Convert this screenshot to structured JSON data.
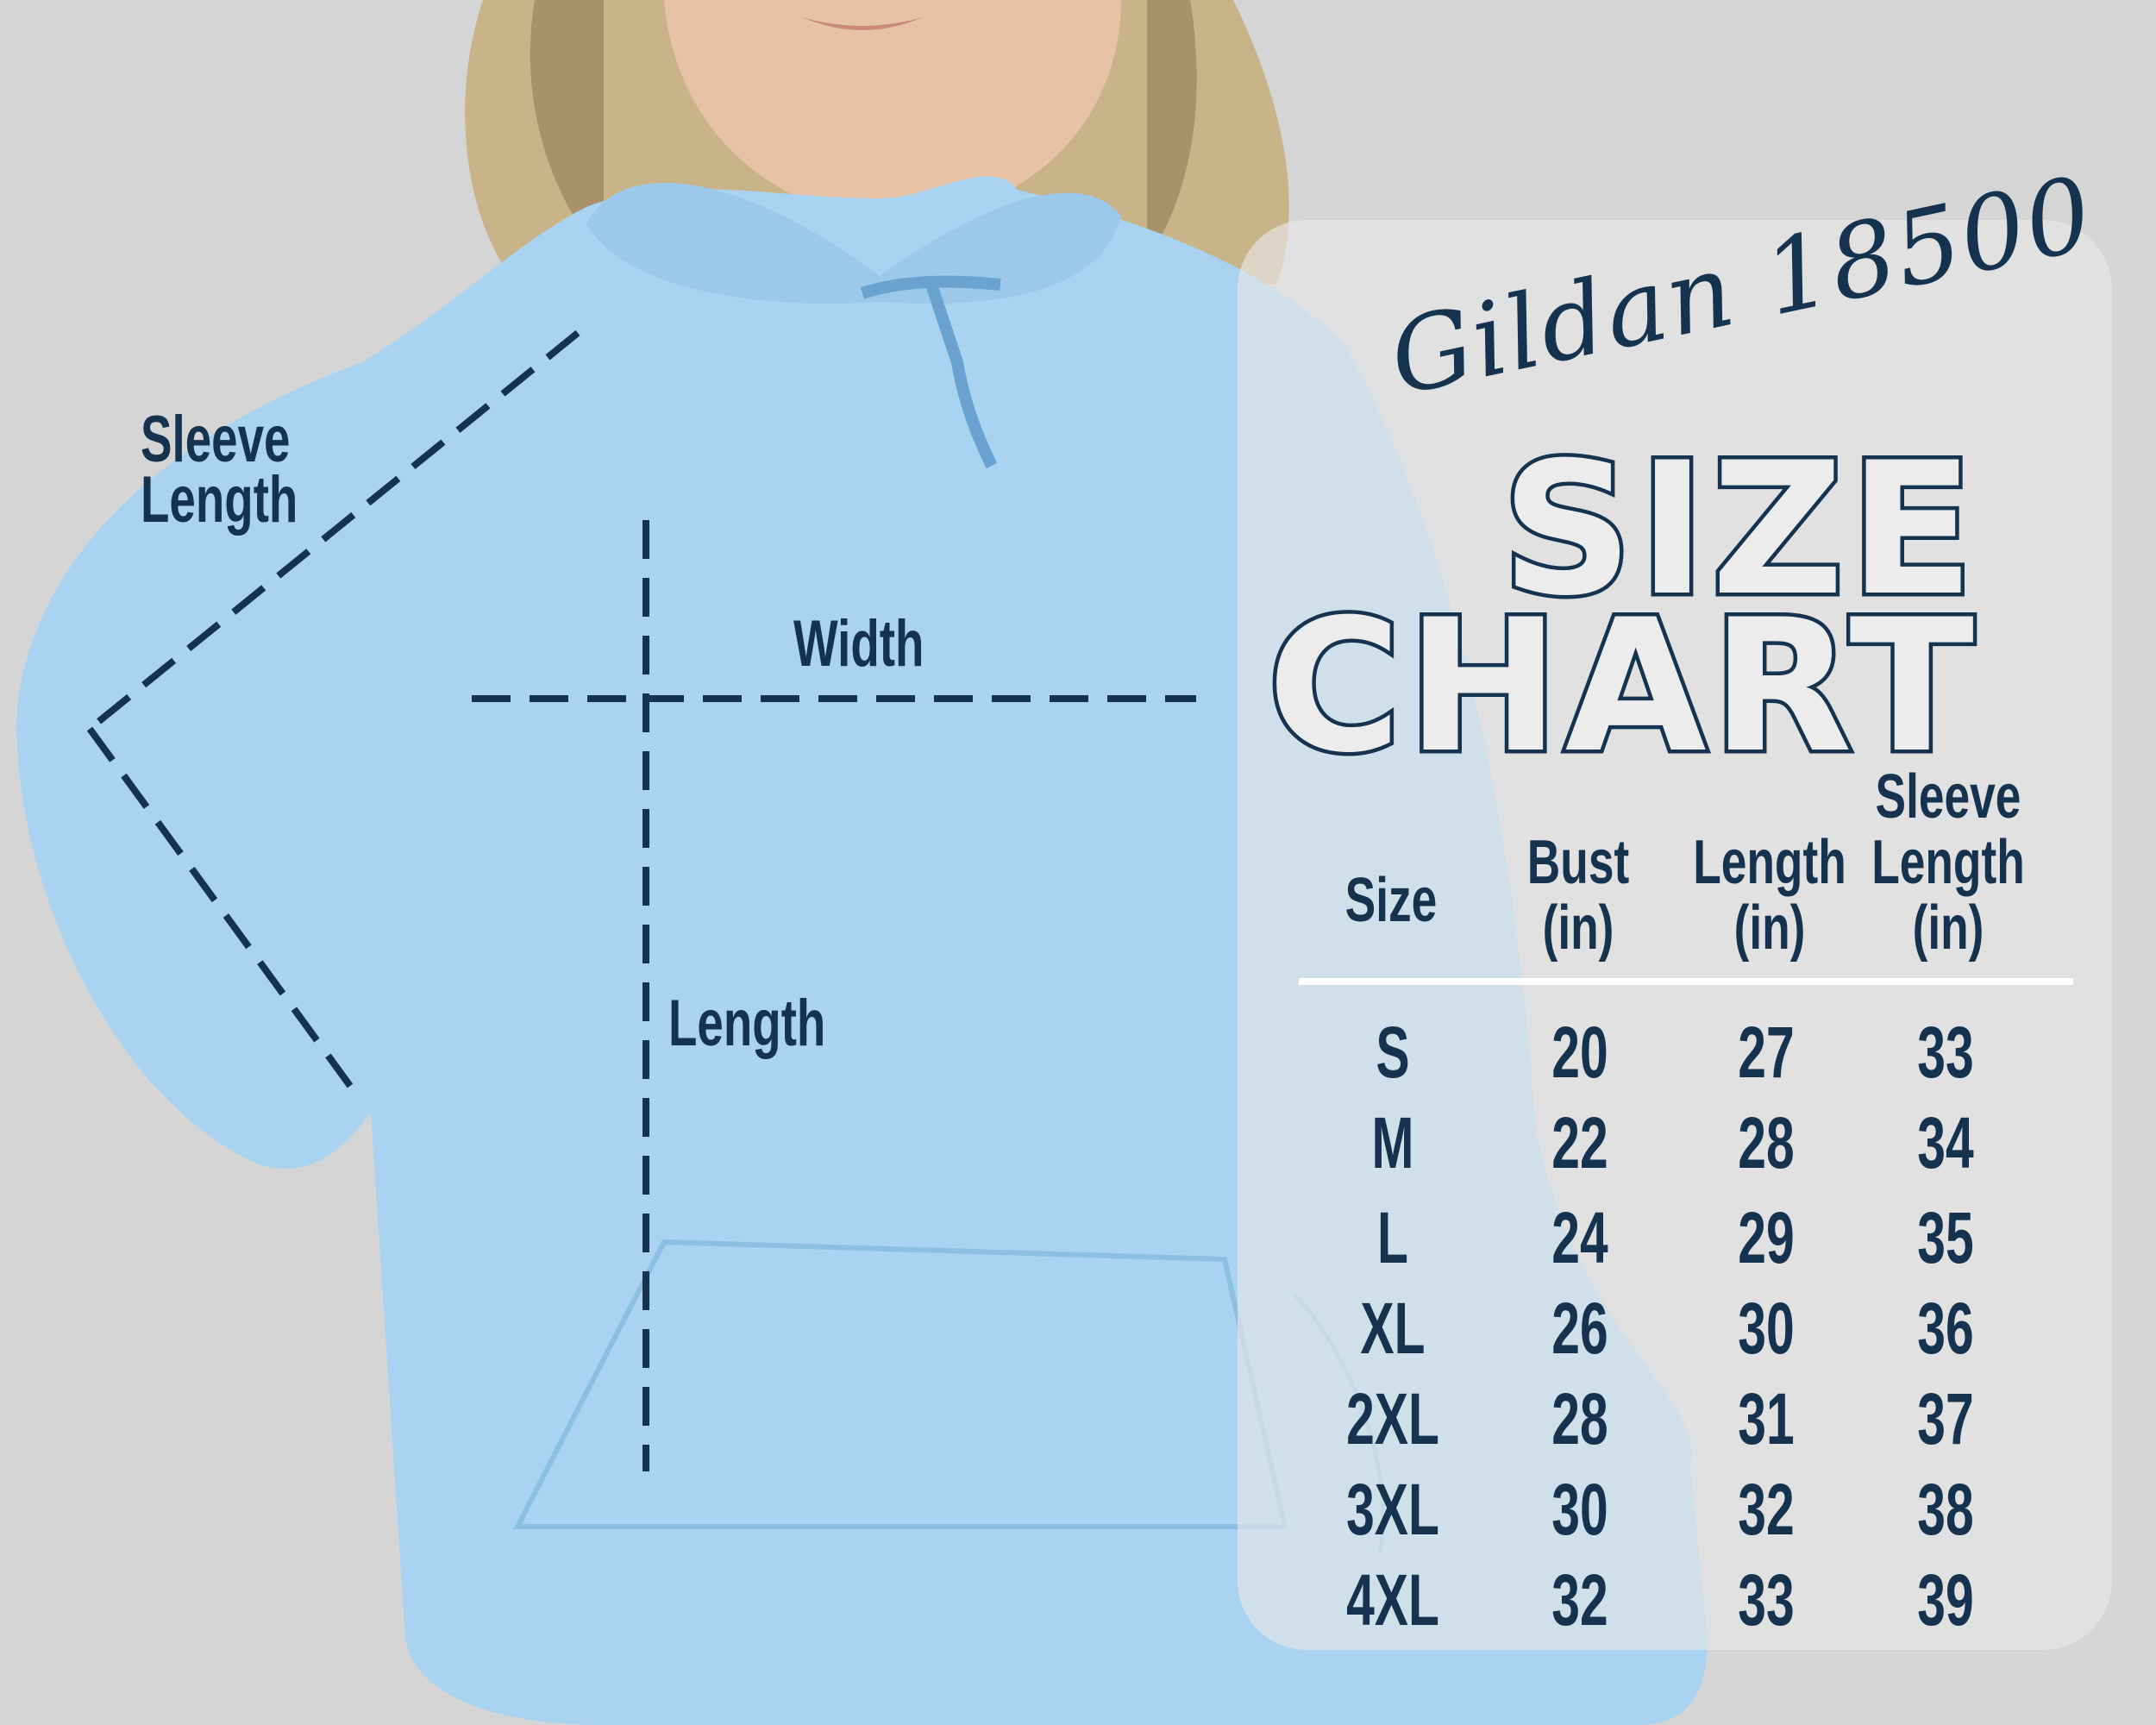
{
  "diagram": {
    "sleeve_label_line1": "Sleeve",
    "sleeve_label_line2": "Length",
    "width_label": "Width",
    "length_label": "Length"
  },
  "chart": {
    "brand_script": "Gildan 18500",
    "title_line1": "SIZE",
    "title_line2": "CHART",
    "headers": {
      "size": "Size",
      "bust_1": "Bust",
      "bust_2": "(in)",
      "length_1": "Length",
      "length_2": "(in)",
      "sleeve_1": "Sleeve",
      "sleeve_2": "Length",
      "sleeve_3": "(in)"
    },
    "rows": [
      {
        "size": "S",
        "bust": "20",
        "length": "27",
        "sleeve": "33"
      },
      {
        "size": "M",
        "bust": "22",
        "length": "28",
        "sleeve": "34"
      },
      {
        "size": "L",
        "bust": "24",
        "length": "29",
        "sleeve": "35"
      },
      {
        "size": "XL",
        "bust": "26",
        "length": "30",
        "sleeve": "36"
      },
      {
        "size": "2XL",
        "bust": "28",
        "length": "31",
        "sleeve": "37"
      },
      {
        "size": "3XL",
        "bust": "30",
        "length": "32",
        "sleeve": "38"
      },
      {
        "size": "4XL",
        "bust": "32",
        "length": "33",
        "sleeve": "39"
      }
    ]
  },
  "colors": {
    "background": "#d5d5d5",
    "hoodie": "#a9d3f0",
    "text_navy": "#15324f",
    "divider": "#ffffff"
  }
}
